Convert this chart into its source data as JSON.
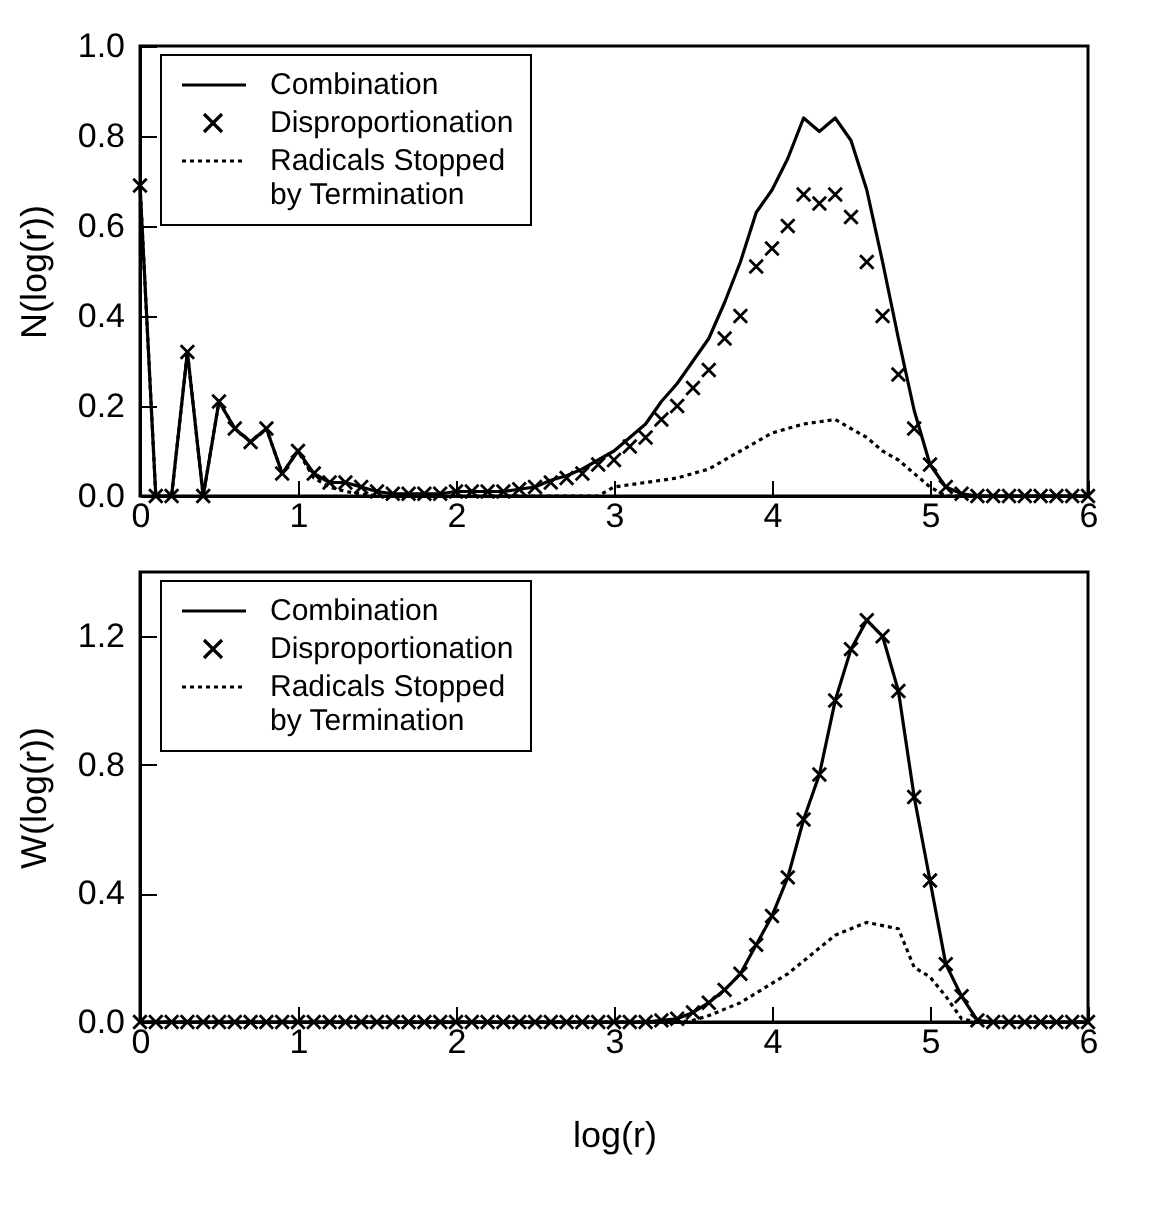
{
  "chart_data": [
    {
      "type": "line",
      "ylabel": "N(log(r))",
      "xlim": [
        0,
        6
      ],
      "xticks": [
        0,
        1,
        2,
        3,
        4,
        5,
        6
      ],
      "ylim": [
        0,
        1
      ],
      "yticks": [
        {
          "value": 0,
          "label": "0.0"
        },
        {
          "value": 0.2,
          "label": "0.2"
        },
        {
          "value": 0.4,
          "label": "0.4"
        },
        {
          "value": 0.6,
          "label": "0.6"
        },
        {
          "value": 0.8,
          "label": "0.8"
        },
        {
          "value": 1,
          "label": "1.0"
        }
      ],
      "legend": "top left",
      "grid": false,
      "x": [
        0,
        0.1,
        0.2,
        0.3,
        0.4,
        0.5,
        0.6,
        0.7,
        0.8,
        0.9,
        1.0,
        1.1,
        1.2,
        1.3,
        1.4,
        1.5,
        1.6,
        1.7,
        1.8,
        1.9,
        2.0,
        2.1,
        2.2,
        2.3,
        2.4,
        2.5,
        2.6,
        2.7,
        2.8,
        2.9,
        3.0,
        3.1,
        3.2,
        3.3,
        3.4,
        3.5,
        3.6,
        3.7,
        3.8,
        3.9,
        4.0,
        4.1,
        4.2,
        4.3,
        4.4,
        4.5,
        4.6,
        4.7,
        4.8,
        4.9,
        5.0,
        5.1,
        5.2,
        5.3,
        5.4,
        5.5,
        5.6,
        5.7,
        5.8,
        5.9,
        6.0
      ],
      "series": [
        {
          "name": "Combination",
          "line_style": "solid",
          "marker": "none",
          "color": "#000000",
          "values": [
            0.69,
            0,
            0,
            0.32,
            0,
            0.21,
            0.15,
            0.12,
            0.15,
            0.05,
            0.1,
            0.05,
            0.03,
            0.03,
            0.02,
            0.01,
            0.005,
            0.005,
            0.005,
            0.005,
            0.01,
            0.01,
            0.01,
            0.01,
            0.015,
            0.02,
            0.035,
            0.045,
            0.06,
            0.08,
            0.1,
            0.13,
            0.16,
            0.21,
            0.25,
            0.3,
            0.35,
            0.43,
            0.52,
            0.63,
            0.68,
            0.75,
            0.84,
            0.81,
            0.84,
            0.79,
            0.68,
            0.52,
            0.35,
            0.19,
            0.07,
            0.02,
            0.005,
            0,
            0,
            0,
            0,
            0,
            0,
            0,
            0
          ]
        },
        {
          "name": "Disproportionation",
          "type": "scatter",
          "marker": "cross",
          "color": "#000000",
          "values": [
            0.69,
            0,
            0,
            0.32,
            0,
            0.21,
            0.15,
            0.12,
            0.15,
            0.05,
            0.1,
            0.05,
            0.03,
            0.03,
            0.02,
            0.01,
            0.005,
            0.005,
            0.005,
            0.005,
            0.01,
            0.01,
            0.01,
            0.01,
            0.015,
            0.02,
            0.03,
            0.04,
            0.05,
            0.07,
            0.08,
            0.11,
            0.13,
            0.17,
            0.2,
            0.24,
            0.28,
            0.35,
            0.4,
            0.51,
            0.55,
            0.6,
            0.67,
            0.65,
            0.67,
            0.62,
            0.52,
            0.4,
            0.27,
            0.15,
            0.07,
            0.02,
            0.005,
            0,
            0,
            0,
            0,
            0,
            0,
            0,
            0
          ]
        },
        {
          "name": "Radicals Stopped\nby Termination",
          "line_style": "dotted",
          "marker": "none",
          "color": "#000000",
          "values": [
            0.69,
            0,
            0,
            0.32,
            0,
            0.21,
            0.15,
            0.12,
            0.15,
            0.05,
            0.1,
            0.04,
            0.02,
            0.01,
            0.005,
            0,
            0,
            0,
            0,
            0,
            0,
            0,
            0,
            0,
            0,
            0,
            0,
            0,
            0,
            0,
            0.02,
            0.025,
            0.03,
            0.035,
            0.04,
            0.05,
            0.06,
            0.08,
            0.1,
            0.12,
            0.14,
            0.15,
            0.16,
            0.165,
            0.17,
            0.15,
            0.13,
            0.1,
            0.08,
            0.05,
            0.02,
            0,
            0,
            0,
            0,
            0,
            0,
            0,
            0,
            0,
            0
          ]
        }
      ]
    },
    {
      "type": "line",
      "xlabel": "log(r)",
      "ylabel": "W(log(r))",
      "xlim": [
        0,
        6
      ],
      "xticks": [
        0,
        1,
        2,
        3,
        4,
        5,
        6
      ],
      "ylim": [
        0,
        1.4
      ],
      "yticks": [
        {
          "value": 0,
          "label": "0.0"
        },
        {
          "value": 0.4,
          "label": "0.4"
        },
        {
          "value": 0.8,
          "label": "0.8"
        },
        {
          "value": 1.2,
          "label": "1.2"
        }
      ],
      "legend": "top left",
      "grid": false,
      "x": [
        0,
        0.1,
        0.2,
        0.3,
        0.4,
        0.5,
        0.6,
        0.7,
        0.8,
        0.9,
        1.0,
        1.1,
        1.2,
        1.3,
        1.4,
        1.5,
        1.6,
        1.7,
        1.8,
        1.9,
        2.0,
        2.1,
        2.2,
        2.3,
        2.4,
        2.5,
        2.6,
        2.7,
        2.8,
        2.9,
        3.0,
        3.1,
        3.2,
        3.3,
        3.4,
        3.5,
        3.6,
        3.7,
        3.8,
        3.9,
        4.0,
        4.1,
        4.2,
        4.3,
        4.4,
        4.5,
        4.6,
        4.7,
        4.8,
        4.9,
        5.0,
        5.1,
        5.2,
        5.3,
        5.4,
        5.5,
        5.6,
        5.7,
        5.8,
        5.9,
        6.0
      ],
      "series": [
        {
          "name": "Combination",
          "line_style": "solid",
          "marker": "none",
          "color": "#000000",
          "values": [
            0,
            0,
            0,
            0,
            0,
            0,
            0,
            0,
            0,
            0,
            0,
            0,
            0,
            0,
            0,
            0,
            0,
            0,
            0,
            0,
            0,
            0,
            0,
            0,
            0,
            0,
            0,
            0,
            0,
            0,
            0,
            0,
            0,
            0.005,
            0.01,
            0.03,
            0.06,
            0.1,
            0.15,
            0.24,
            0.33,
            0.45,
            0.63,
            0.77,
            1.0,
            1.16,
            1.25,
            1.2,
            1.03,
            0.7,
            0.44,
            0.18,
            0.08,
            0.005,
            0,
            0,
            0,
            0,
            0,
            0,
            0
          ]
        },
        {
          "name": "Disproportionation",
          "type": "scatter",
          "marker": "cross",
          "color": "#000000",
          "values": [
            0,
            0,
            0,
            0,
            0,
            0,
            0,
            0,
            0,
            0,
            0,
            0,
            0,
            0,
            0,
            0,
            0,
            0,
            0,
            0,
            0,
            0,
            0,
            0,
            0,
            0,
            0,
            0,
            0,
            0,
            0,
            0,
            0,
            0.005,
            0.01,
            0.03,
            0.06,
            0.1,
            0.15,
            0.24,
            0.33,
            0.45,
            0.63,
            0.77,
            1.0,
            1.16,
            1.25,
            1.2,
            1.03,
            0.7,
            0.44,
            0.18,
            0.08,
            0.005,
            0,
            0,
            0,
            0,
            0,
            0,
            0
          ]
        },
        {
          "name": "Radicals Stopped\nby Termination",
          "line_style": "dotted",
          "marker": "none",
          "color": "#000000",
          "values": [
            0,
            0,
            0,
            0,
            0,
            0,
            0,
            0,
            0,
            0,
            0,
            0,
            0,
            0,
            0,
            0,
            0,
            0,
            0,
            0,
            0,
            0,
            0,
            0,
            0,
            0,
            0,
            0,
            0,
            0,
            0,
            0,
            0,
            0,
            0,
            0.005,
            0.02,
            0.04,
            0.06,
            0.09,
            0.12,
            0.15,
            0.19,
            0.23,
            0.27,
            0.29,
            0.31,
            0.3,
            0.29,
            0.17,
            0.14,
            0.08,
            0.01,
            0,
            0,
            0,
            0,
            0,
            0,
            0,
            0
          ]
        }
      ]
    }
  ]
}
